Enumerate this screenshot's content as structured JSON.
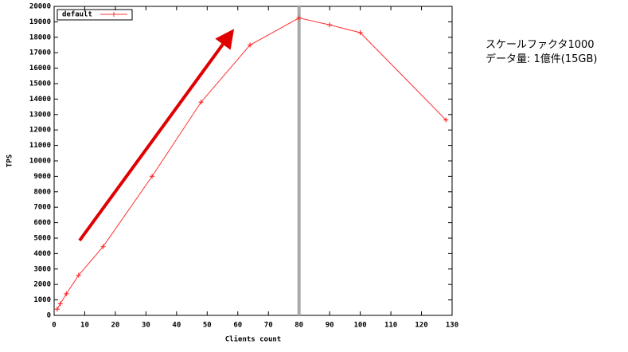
{
  "chart_data": {
    "type": "line",
    "title": null,
    "xlabel": "Clients count",
    "ylabel": "TPS",
    "x": [
      1,
      2,
      4,
      8,
      16,
      32,
      48,
      64,
      80,
      90,
      100,
      128
    ],
    "series": [
      {
        "name": "default",
        "color": "#ff3030",
        "values": [
          400,
          750,
          1400,
          2600,
          4450,
          9000,
          13800,
          17500,
          19250,
          18800,
          18300,
          12650
        ]
      }
    ],
    "xlim": [
      0,
      130
    ],
    "xticks": [
      0,
      10,
      20,
      30,
      40,
      50,
      60,
      70,
      80,
      90,
      100,
      110,
      120,
      130
    ],
    "ylim": [
      0,
      20000
    ],
    "yticks": [
      0,
      1000,
      2000,
      3000,
      4000,
      5000,
      6000,
      7000,
      8000,
      9000,
      10000,
      11000,
      12000,
      13000,
      14000,
      15000,
      16000,
      17000,
      18000,
      19000,
      20000
    ],
    "vline_x": 80,
    "annotations": [
      "スケールファクタ1000",
      "データ量: 1億件(15GB)"
    ]
  }
}
